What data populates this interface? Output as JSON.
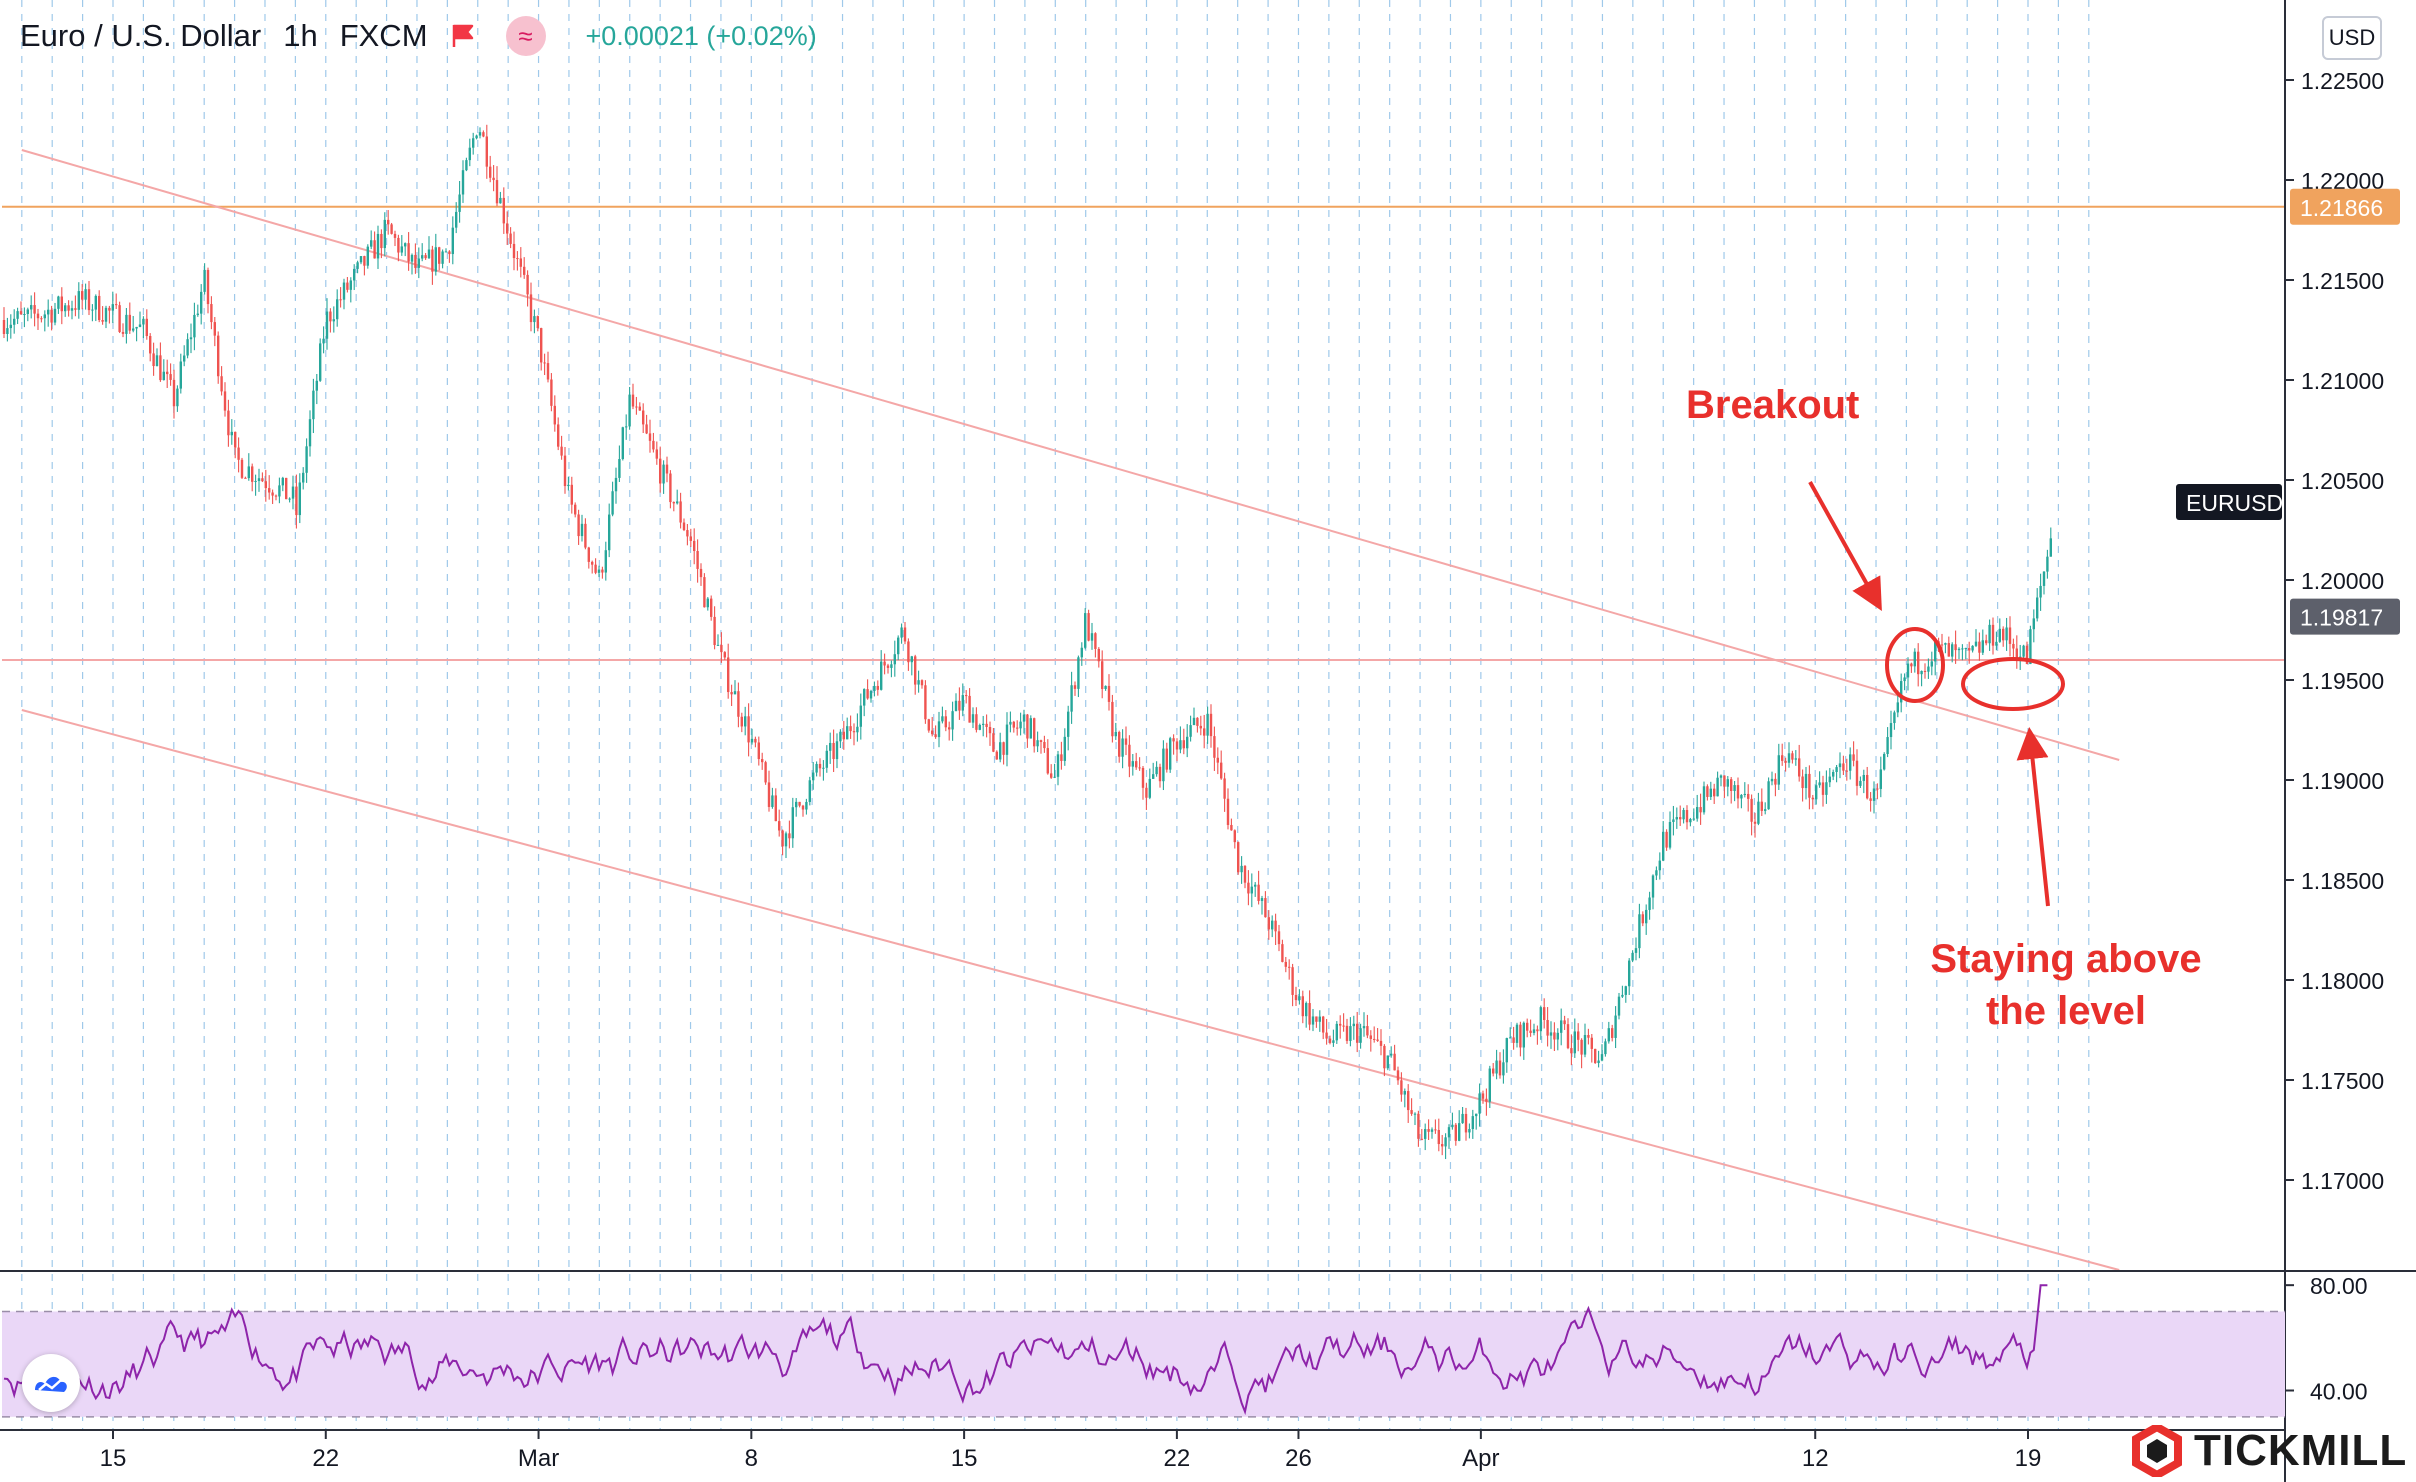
{
  "header": {
    "symbol": "Euro / U.S. Dollar",
    "interval": "1h",
    "exchange": "FXCM",
    "change": "+0.00021 (+0.02%)",
    "currency_button": "USD"
  },
  "brand": {
    "name": "TICKMILL"
  },
  "colors": {
    "up": "#26a69a",
    "down": "#ef5350",
    "channel": "#f4a7a7",
    "orange_level": "#f0a35e",
    "rsi_line": "#8e24aa",
    "rsi_band": "#ead7f7",
    "annotation": "#e8302c"
  },
  "chart_data": {
    "type": "candlestick",
    "title": "Euro / U.S. Dollar",
    "y_axis": {
      "range": [
        1.1655,
        1.229
      ],
      "ticks": [
        "1.22500",
        "1.22000",
        "1.21500",
        "1.21000",
        "1.20500",
        "1.20000",
        "1.19500",
        "1.19000",
        "1.18500",
        "1.18000",
        "1.17500",
        "1.17000"
      ]
    },
    "x_axis": {
      "ticks": [
        "15",
        "22",
        "Mar",
        "8",
        "15",
        "22",
        "26",
        "Apr",
        "12",
        "19"
      ],
      "tick_dates": [
        "2021-02-15",
        "2021-02-22",
        "2021-03-01",
        "2021-03-08",
        "2021-03-15",
        "2021-03-22",
        "2021-03-26",
        "2021-04-01",
        "2021-04-12",
        "2021-04-19"
      ]
    },
    "price_path": [
      [
        "2021-02-12",
        1.213
      ],
      [
        "2021-02-14",
        1.214
      ],
      [
        "2021-02-16",
        1.2125
      ],
      [
        "2021-02-17",
        1.209
      ],
      [
        "2021-02-18",
        1.215
      ],
      [
        "2021-02-19",
        1.206
      ],
      [
        "2021-02-21",
        1.204
      ],
      [
        "2021-02-21",
        1.203
      ],
      [
        "2021-02-22",
        1.213
      ],
      [
        "2021-02-24",
        1.2175
      ],
      [
        "2021-02-25",
        1.2155
      ],
      [
        "2021-02-26",
        1.2165
      ],
      [
        "2021-02-27",
        1.223
      ],
      [
        "2021-02-28",
        1.2175
      ],
      [
        "2021-03-01",
        1.212
      ],
      [
        "2021-03-02",
        1.204
      ],
      [
        "2021-03-03",
        1.2
      ],
      [
        "2021-03-04",
        1.209
      ],
      [
        "2021-03-06",
        1.202
      ],
      [
        "2021-03-07",
        1.196
      ],
      [
        "2021-03-08",
        1.192
      ],
      [
        "2021-03-09",
        1.187
      ],
      [
        "2021-03-10",
        1.19
      ],
      [
        "2021-03-11",
        1.192
      ],
      [
        "2021-03-13",
        1.1975
      ],
      [
        "2021-03-14",
        1.192
      ],
      [
        "2021-03-15",
        1.194
      ],
      [
        "2021-03-16",
        1.1915
      ],
      [
        "2021-03-17",
        1.193
      ],
      [
        "2021-03-18",
        1.19
      ],
      [
        "2021-03-19",
        1.198
      ],
      [
        "2021-03-20",
        1.192
      ],
      [
        "2021-03-21",
        1.1895
      ],
      [
        "2021-03-22",
        1.192
      ],
      [
        "2021-03-23",
        1.193
      ],
      [
        "2021-03-24",
        1.186
      ],
      [
        "2021-03-25",
        1.183
      ],
      [
        "2021-03-26",
        1.179
      ],
      [
        "2021-03-27",
        1.177
      ],
      [
        "2021-03-28",
        1.1775
      ],
      [
        "2021-03-29",
        1.176
      ],
      [
        "2021-03-30",
        1.172
      ],
      [
        "2021-03-31",
        1.172
      ],
      [
        "2021-04-01",
        1.174
      ],
      [
        "2021-04-02",
        1.177
      ],
      [
        "2021-04-03",
        1.178
      ],
      [
        "2021-04-05",
        1.176
      ],
      [
        "2021-04-06",
        1.1815
      ],
      [
        "2021-04-07",
        1.187
      ],
      [
        "2021-04-09",
        1.19
      ],
      [
        "2021-04-10",
        1.188
      ],
      [
        "2021-04-11",
        1.1915
      ],
      [
        "2021-04-12",
        1.189
      ],
      [
        "2021-04-13",
        1.191
      ],
      [
        "2021-04-14",
        1.189
      ],
      [
        "2021-04-15",
        1.1955
      ],
      [
        "2021-04-16",
        1.1965
      ],
      [
        "2021-04-17",
        1.196
      ],
      [
        "2021-04-18",
        1.1975
      ],
      [
        "2021-04-19",
        1.196
      ],
      [
        "2021-04-19",
        1.1965
      ],
      [
        "2021-04-20",
        1.204
      ]
    ],
    "levels": [
      {
        "price": 1.21866,
        "label": "1.21866",
        "color": "#f0a35e"
      },
      {
        "price": 1.196,
        "color": "#f4a7a7"
      }
    ],
    "price_tags": [
      {
        "price": 1.2039,
        "label": "EURUSD",
        "style": "dark"
      },
      {
        "price": 1.19817,
        "label": "1.19817",
        "style": "grey"
      }
    ],
    "channel_lines": [
      {
        "from": [
          "2021-02-12",
          1.2215
        ],
        "to": [
          "2021-04-22",
          1.191
        ]
      },
      {
        "from": [
          "2021-02-12",
          1.1935
        ],
        "to": [
          "2021-04-22",
          1.1655
        ]
      }
    ],
    "annotations": [
      {
        "text": "Breakout"
      },
      {
        "text": "Staying above"
      },
      {
        "text": "the level"
      }
    ],
    "rsi": {
      "ticks": [
        "80.00",
        "40.00"
      ],
      "range": [
        25,
        85
      ],
      "band": [
        30,
        70
      ]
    }
  }
}
